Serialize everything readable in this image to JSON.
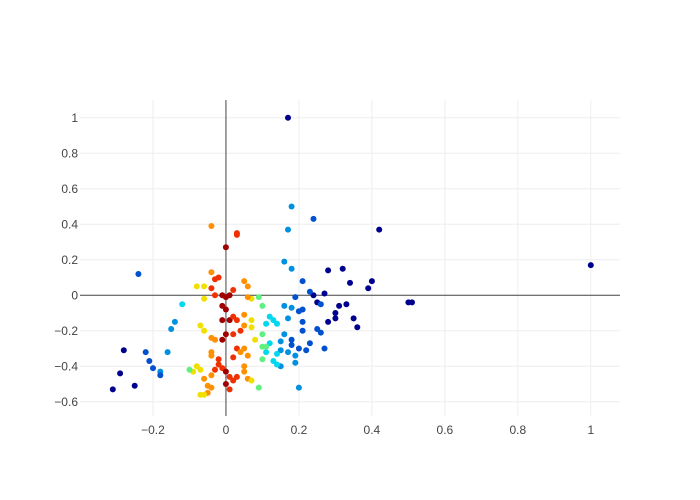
{
  "chart_data": {
    "type": "scatter",
    "title": "",
    "xlabel": "",
    "ylabel": "",
    "xlim": [
      -0.4,
      1.08
    ],
    "ylim": [
      -0.68,
      1.1
    ],
    "x_ticks": [
      -0.2,
      0,
      0.2,
      0.4,
      0.6,
      0.8,
      1
    ],
    "x_tick_labels": [
      "−0.2",
      "0",
      "0.2",
      "0.4",
      "0.6",
      "0.8",
      "1"
    ],
    "y_ticks": [
      -0.6,
      -0.4,
      -0.2,
      0,
      0.2,
      0.4,
      0.6,
      0.8,
      1
    ],
    "y_tick_labels": [
      "−0.6",
      "−0.4",
      "−0.2",
      "0",
      "0.2",
      "0.4",
      "0.6",
      "0.8",
      "1"
    ],
    "grid": true,
    "zero_lines": true,
    "legend": "none",
    "colorscale": "Jet",
    "colors": {
      "dark_blue": "#00008f",
      "blue": "#0050d0",
      "sky": "#0090e0",
      "cyan": "#00d8f0",
      "green": "#60f080",
      "yellow": "#f0e000",
      "orange": "#ff9000",
      "red": "#f03000",
      "dark_red": "#a00000",
      "grid": "#eeeeee",
      "axis": "#444444"
    },
    "points": [
      {
        "x": 0.17,
        "y": 1.0,
        "c": "dark_blue"
      },
      {
        "x": 1.0,
        "y": 0.17,
        "c": "dark_blue"
      },
      {
        "x": 0.42,
        "y": 0.37,
        "c": "dark_blue"
      },
      {
        "x": 0.24,
        "y": 0.43,
        "c": "blue"
      },
      {
        "x": 0.18,
        "y": 0.5,
        "c": "sky"
      },
      {
        "x": 0.17,
        "y": 0.37,
        "c": "sky"
      },
      {
        "x": -0.24,
        "y": 0.12,
        "c": "blue"
      },
      {
        "x": 0.5,
        "y": -0.04,
        "c": "dark_blue"
      },
      {
        "x": 0.51,
        "y": -0.04,
        "c": "dark_blue"
      },
      {
        "x": 0.4,
        "y": 0.08,
        "c": "dark_blue"
      },
      {
        "x": 0.39,
        "y": 0.04,
        "c": "dark_blue"
      },
      {
        "x": 0.34,
        "y": 0.07,
        "c": "dark_blue"
      },
      {
        "x": 0.32,
        "y": 0.15,
        "c": "dark_blue"
      },
      {
        "x": 0.28,
        "y": 0.14,
        "c": "dark_blue"
      },
      {
        "x": 0.27,
        "y": 0.01,
        "c": "dark_blue"
      },
      {
        "x": 0.24,
        "y": 0.0,
        "c": "dark_blue"
      },
      {
        "x": 0.23,
        "y": 0.02,
        "c": "blue"
      },
      {
        "x": 0.25,
        "y": -0.04,
        "c": "dark_blue"
      },
      {
        "x": 0.26,
        "y": -0.05,
        "c": "blue"
      },
      {
        "x": 0.33,
        "y": -0.05,
        "c": "dark_blue"
      },
      {
        "x": 0.31,
        "y": -0.06,
        "c": "dark_blue"
      },
      {
        "x": 0.3,
        "y": -0.1,
        "c": "dark_blue"
      },
      {
        "x": 0.35,
        "y": -0.13,
        "c": "dark_blue"
      },
      {
        "x": 0.36,
        "y": -0.18,
        "c": "dark_blue"
      },
      {
        "x": 0.3,
        "y": -0.13,
        "c": "dark_blue"
      },
      {
        "x": 0.28,
        "y": -0.15,
        "c": "dark_blue"
      },
      {
        "x": 0.25,
        "y": -0.19,
        "c": "blue"
      },
      {
        "x": 0.26,
        "y": -0.21,
        "c": "blue"
      },
      {
        "x": 0.27,
        "y": -0.3,
        "c": "blue"
      },
      {
        "x": 0.23,
        "y": -0.27,
        "c": "blue"
      },
      {
        "x": 0.22,
        "y": -0.31,
        "c": "blue"
      },
      {
        "x": 0.2,
        "y": -0.3,
        "c": "blue"
      },
      {
        "x": 0.21,
        "y": -0.2,
        "c": "blue"
      },
      {
        "x": 0.21,
        "y": -0.15,
        "c": "blue"
      },
      {
        "x": 0.21,
        "y": -0.08,
        "c": "blue"
      },
      {
        "x": 0.2,
        "y": -0.09,
        "c": "blue"
      },
      {
        "x": 0.21,
        "y": 0.08,
        "c": "blue"
      },
      {
        "x": 0.19,
        "y": -0.01,
        "c": "blue"
      },
      {
        "x": 0.18,
        "y": 0.15,
        "c": "sky"
      },
      {
        "x": 0.16,
        "y": 0.19,
        "c": "sky"
      },
      {
        "x": 0.18,
        "y": -0.07,
        "c": "sky"
      },
      {
        "x": 0.16,
        "y": -0.06,
        "c": "sky"
      },
      {
        "x": 0.17,
        "y": -0.13,
        "c": "sky"
      },
      {
        "x": 0.18,
        "y": -0.25,
        "c": "blue"
      },
      {
        "x": 0.18,
        "y": -0.28,
        "c": "blue"
      },
      {
        "x": 0.17,
        "y": -0.32,
        "c": "sky"
      },
      {
        "x": 0.19,
        "y": -0.34,
        "c": "sky"
      },
      {
        "x": 0.19,
        "y": -0.38,
        "c": "sky"
      },
      {
        "x": 0.2,
        "y": -0.52,
        "c": "sky"
      },
      {
        "x": 0.16,
        "y": -0.22,
        "c": "sky"
      },
      {
        "x": 0.15,
        "y": -0.26,
        "c": "sky"
      },
      {
        "x": 0.15,
        "y": -0.31,
        "c": "sky"
      },
      {
        "x": 0.15,
        "y": -0.4,
        "c": "sky"
      },
      {
        "x": 0.14,
        "y": -0.39,
        "c": "cyan"
      },
      {
        "x": 0.14,
        "y": -0.33,
        "c": "cyan"
      },
      {
        "x": 0.13,
        "y": -0.37,
        "c": "cyan"
      },
      {
        "x": 0.14,
        "y": -0.16,
        "c": "cyan"
      },
      {
        "x": 0.13,
        "y": -0.14,
        "c": "cyan"
      },
      {
        "x": 0.12,
        "y": -0.27,
        "c": "cyan"
      },
      {
        "x": 0.11,
        "y": -0.16,
        "c": "cyan"
      },
      {
        "x": 0.11,
        "y": -0.32,
        "c": "cyan"
      },
      {
        "x": 0.12,
        "y": -0.12,
        "c": "cyan"
      },
      {
        "x": 0.1,
        "y": -0.06,
        "c": "green"
      },
      {
        "x": 0.09,
        "y": -0.01,
        "c": "green"
      },
      {
        "x": 0.1,
        "y": -0.22,
        "c": "green"
      },
      {
        "x": 0.1,
        "y": -0.29,
        "c": "green"
      },
      {
        "x": 0.11,
        "y": -0.29,
        "c": "green"
      },
      {
        "x": 0.1,
        "y": -0.36,
        "c": "green"
      },
      {
        "x": 0.09,
        "y": -0.52,
        "c": "green"
      },
      {
        "x": 0.07,
        "y": -0.18,
        "c": "yellow"
      },
      {
        "x": 0.07,
        "y": -0.14,
        "c": "yellow"
      },
      {
        "x": 0.08,
        "y": -0.25,
        "c": "yellow"
      },
      {
        "x": 0.07,
        "y": -0.02,
        "c": "yellow"
      },
      {
        "x": 0.06,
        "y": -0.01,
        "c": "orange"
      },
      {
        "x": 0.06,
        "y": 0.05,
        "c": "orange"
      },
      {
        "x": 0.05,
        "y": 0.08,
        "c": "orange"
      },
      {
        "x": 0.05,
        "y": -0.11,
        "c": "orange"
      },
      {
        "x": 0.05,
        "y": -0.17,
        "c": "orange"
      },
      {
        "x": 0.05,
        "y": -0.3,
        "c": "orange"
      },
      {
        "x": 0.06,
        "y": -0.34,
        "c": "orange"
      },
      {
        "x": 0.05,
        "y": -0.4,
        "c": "orange"
      },
      {
        "x": 0.05,
        "y": -0.43,
        "c": "orange"
      },
      {
        "x": 0.06,
        "y": -0.47,
        "c": "orange"
      },
      {
        "x": 0.07,
        "y": -0.48,
        "c": "yellow"
      },
      {
        "x": 0.03,
        "y": 0.34,
        "c": "red"
      },
      {
        "x": 0.03,
        "y": 0.35,
        "c": "red"
      },
      {
        "x": 0.0,
        "y": 0.27,
        "c": "dark_red"
      },
      {
        "x": -0.04,
        "y": 0.39,
        "c": "orange"
      },
      {
        "x": -0.04,
        "y": 0.13,
        "c": "orange"
      },
      {
        "x": -0.03,
        "y": 0.09,
        "c": "red"
      },
      {
        "x": -0.02,
        "y": 0.1,
        "c": "red"
      },
      {
        "x": -0.04,
        "y": 0.04,
        "c": "red"
      },
      {
        "x": -0.03,
        "y": 0.0,
        "c": "red"
      },
      {
        "x": -0.01,
        "y": 0.0,
        "c": "dark_red"
      },
      {
        "x": 0.0,
        "y": -0.01,
        "c": "dark_red"
      },
      {
        "x": 0.01,
        "y": 0.0,
        "c": "dark_red"
      },
      {
        "x": 0.02,
        "y": 0.03,
        "c": "red"
      },
      {
        "x": -0.01,
        "y": -0.06,
        "c": "dark_red"
      },
      {
        "x": 0.0,
        "y": -0.08,
        "c": "dark_red"
      },
      {
        "x": -0.01,
        "y": -0.14,
        "c": "dark_red"
      },
      {
        "x": 0.01,
        "y": -0.14,
        "c": "dark_red"
      },
      {
        "x": 0.02,
        "y": -0.12,
        "c": "red"
      },
      {
        "x": 0.03,
        "y": -0.14,
        "c": "red"
      },
      {
        "x": 0.04,
        "y": -0.2,
        "c": "red"
      },
      {
        "x": 0.02,
        "y": -0.22,
        "c": "red"
      },
      {
        "x": 0.0,
        "y": -0.22,
        "c": "dark_red"
      },
      {
        "x": -0.01,
        "y": -0.25,
        "c": "dark_red"
      },
      {
        "x": 0.03,
        "y": -0.3,
        "c": "red"
      },
      {
        "x": 0.04,
        "y": -0.32,
        "c": "orange"
      },
      {
        "x": 0.02,
        "y": -0.35,
        "c": "red"
      },
      {
        "x": -0.02,
        "y": -0.36,
        "c": "red"
      },
      {
        "x": -0.02,
        "y": -0.39,
        "c": "red"
      },
      {
        "x": -0.01,
        "y": -0.41,
        "c": "red"
      },
      {
        "x": 0.0,
        "y": -0.43,
        "c": "dark_red"
      },
      {
        "x": 0.01,
        "y": -0.46,
        "c": "red"
      },
      {
        "x": 0.02,
        "y": -0.48,
        "c": "red"
      },
      {
        "x": 0.03,
        "y": -0.46,
        "c": "red"
      },
      {
        "x": 0.0,
        "y": -0.5,
        "c": "dark_red"
      },
      {
        "x": 0.01,
        "y": -0.53,
        "c": "red"
      },
      {
        "x": -0.03,
        "y": -0.42,
        "c": "red"
      },
      {
        "x": -0.04,
        "y": -0.45,
        "c": "orange"
      },
      {
        "x": -0.04,
        "y": -0.32,
        "c": "orange"
      },
      {
        "x": -0.04,
        "y": -0.34,
        "c": "orange"
      },
      {
        "x": -0.04,
        "y": -0.24,
        "c": "orange"
      },
      {
        "x": -0.03,
        "y": -0.25,
        "c": "orange"
      },
      {
        "x": -0.05,
        "y": -0.51,
        "c": "orange"
      },
      {
        "x": -0.04,
        "y": -0.52,
        "c": "orange"
      },
      {
        "x": -0.05,
        "y": -0.55,
        "c": "orange"
      },
      {
        "x": -0.06,
        "y": -0.47,
        "c": "orange"
      },
      {
        "x": -0.06,
        "y": -0.2,
        "c": "yellow"
      },
      {
        "x": -0.07,
        "y": -0.17,
        "c": "yellow"
      },
      {
        "x": -0.07,
        "y": -0.42,
        "c": "yellow"
      },
      {
        "x": -0.08,
        "y": -0.4,
        "c": "yellow"
      },
      {
        "x": -0.09,
        "y": -0.43,
        "c": "yellow"
      },
      {
        "x": -0.07,
        "y": -0.56,
        "c": "yellow"
      },
      {
        "x": -0.06,
        "y": -0.56,
        "c": "yellow"
      },
      {
        "x": -0.06,
        "y": 0.05,
        "c": "yellow"
      },
      {
        "x": -0.06,
        "y": -0.02,
        "c": "yellow"
      },
      {
        "x": -0.08,
        "y": 0.05,
        "c": "yellow"
      },
      {
        "x": -0.1,
        "y": -0.42,
        "c": "green"
      },
      {
        "x": -0.12,
        "y": -0.05,
        "c": "cyan"
      },
      {
        "x": -0.14,
        "y": -0.15,
        "c": "sky"
      },
      {
        "x": -0.15,
        "y": -0.19,
        "c": "sky"
      },
      {
        "x": -0.16,
        "y": -0.32,
        "c": "sky"
      },
      {
        "x": -0.18,
        "y": -0.43,
        "c": "sky"
      },
      {
        "x": -0.18,
        "y": -0.45,
        "c": "blue"
      },
      {
        "x": -0.2,
        "y": -0.41,
        "c": "blue"
      },
      {
        "x": -0.21,
        "y": -0.37,
        "c": "blue"
      },
      {
        "x": -0.22,
        "y": -0.32,
        "c": "blue"
      },
      {
        "x": -0.25,
        "y": -0.51,
        "c": "dark_blue"
      },
      {
        "x": -0.28,
        "y": -0.31,
        "c": "dark_blue"
      },
      {
        "x": -0.29,
        "y": -0.44,
        "c": "dark_blue"
      },
      {
        "x": -0.31,
        "y": -0.53,
        "c": "dark_blue"
      }
    ]
  }
}
